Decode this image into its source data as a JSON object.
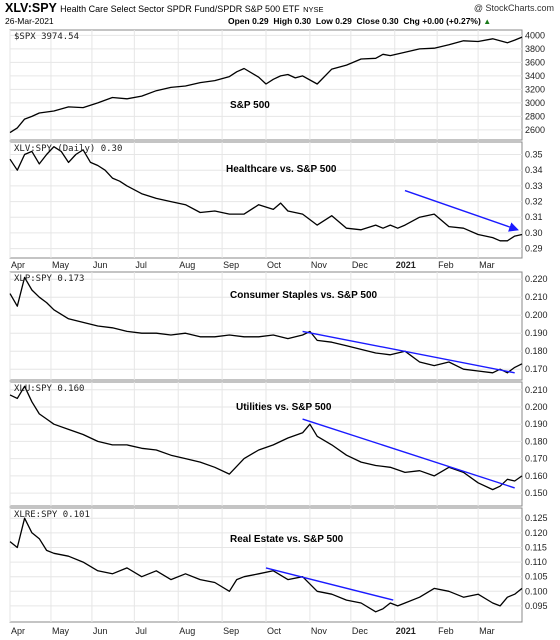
{
  "header": {
    "symbol": "XLV:SPY",
    "description": "Health Care Select Sector SPDR Fund/SPDR S&P 500 ETF",
    "exchange": "NYSE",
    "date": "26-Mar-2021",
    "open": "Open 0.29",
    "high": "High 0.30",
    "low": "Low 0.29",
    "close": "Close 0.30",
    "change": "Chg +0.00 (+0.27%)",
    "change_marker": "▲",
    "credit": "@ StockCharts.com"
  },
  "colors": {
    "price": "#000000",
    "trend": "#1a1aff",
    "grid": "#e6e6e6",
    "axis": "#888888"
  },
  "chart_data": [
    {
      "type": "line",
      "legend": "$SPX 3974.54",
      "annotation": "S&P 500",
      "y_ticks": [
        "2600",
        "2800",
        "3000",
        "3200",
        "3400",
        "3600",
        "3800",
        "4000"
      ],
      "ylim": [
        2450,
        4080
      ],
      "x": [
        0,
        5,
        10,
        15,
        20,
        30,
        40,
        50,
        60,
        70,
        80,
        90,
        100,
        110,
        120,
        130,
        140,
        150,
        155,
        160,
        170,
        175,
        180,
        185,
        190,
        195,
        200,
        210,
        220,
        230,
        240,
        250,
        255,
        260,
        270,
        280,
        290,
        300,
        310,
        320,
        330,
        340,
        345,
        350
      ],
      "values": [
        2560,
        2630,
        2760,
        2800,
        2850,
        2880,
        2940,
        2930,
        3000,
        3080,
        3060,
        3100,
        3180,
        3230,
        3250,
        3300,
        3330,
        3390,
        3460,
        3510,
        3380,
        3280,
        3350,
        3400,
        3420,
        3370,
        3400,
        3280,
        3500,
        3560,
        3650,
        3660,
        3720,
        3700,
        3750,
        3800,
        3810,
        3860,
        3920,
        3910,
        3950,
        3890,
        3930,
        3975
      ],
      "trendline": null
    },
    {
      "type": "line",
      "legend": "XLV:SPY (Daily) 0.30",
      "annotation": "Healthcare vs. S&P 500",
      "y_ticks": [
        "0.29",
        "0.30",
        "0.31",
        "0.32",
        "0.33",
        "0.34",
        "0.35"
      ],
      "ylim": [
        0.284,
        0.358
      ],
      "x": [
        0,
        5,
        10,
        15,
        20,
        25,
        30,
        35,
        40,
        45,
        50,
        55,
        60,
        65,
        70,
        75,
        80,
        90,
        100,
        110,
        120,
        130,
        140,
        150,
        160,
        170,
        180,
        185,
        190,
        200,
        210,
        220,
        230,
        240,
        250,
        255,
        260,
        265,
        270,
        280,
        290,
        300,
        310,
        320,
        330,
        335,
        340,
        345,
        350
      ],
      "values": [
        0.347,
        0.34,
        0.35,
        0.352,
        0.344,
        0.35,
        0.355,
        0.352,
        0.345,
        0.35,
        0.353,
        0.345,
        0.343,
        0.34,
        0.335,
        0.333,
        0.33,
        0.325,
        0.322,
        0.32,
        0.318,
        0.313,
        0.314,
        0.312,
        0.312,
        0.318,
        0.315,
        0.319,
        0.314,
        0.312,
        0.305,
        0.311,
        0.303,
        0.302,
        0.305,
        0.303,
        0.305,
        0.303,
        0.305,
        0.31,
        0.312,
        0.304,
        0.303,
        0.299,
        0.297,
        0.295,
        0.295,
        0.298,
        0.299
      ],
      "trendline": [
        [
          270,
          0.327
        ],
        [
          347,
          0.302
        ]
      ],
      "trend_arrow": true
    },
    {
      "type": "line",
      "legend": "XLP:SPY 0.173",
      "annotation": "Consumer Staples vs. S&P 500",
      "y_ticks": [
        "0.170",
        "0.180",
        "0.190",
        "0.200",
        "0.210",
        "0.220"
      ],
      "ylim": [
        0.164,
        0.224
      ],
      "x": [
        0,
        5,
        10,
        15,
        20,
        25,
        30,
        40,
        50,
        60,
        70,
        80,
        90,
        100,
        110,
        120,
        130,
        140,
        150,
        160,
        170,
        180,
        190,
        200,
        205,
        210,
        220,
        230,
        240,
        250,
        260,
        270,
        280,
        290,
        300,
        310,
        320,
        330,
        335,
        340,
        345,
        350
      ],
      "values": [
        0.212,
        0.205,
        0.221,
        0.214,
        0.21,
        0.207,
        0.203,
        0.198,
        0.196,
        0.194,
        0.193,
        0.191,
        0.19,
        0.19,
        0.189,
        0.19,
        0.188,
        0.188,
        0.189,
        0.188,
        0.188,
        0.189,
        0.187,
        0.189,
        0.191,
        0.186,
        0.185,
        0.183,
        0.181,
        0.179,
        0.178,
        0.18,
        0.174,
        0.172,
        0.174,
        0.17,
        0.169,
        0.168,
        0.17,
        0.168,
        0.171,
        0.173
      ],
      "trendline": [
        [
          200,
          0.191
        ],
        [
          345,
          0.168
        ]
      ],
      "trend_arrow": false
    },
    {
      "type": "line",
      "legend": "XLU:SPY 0.160",
      "annotation": "Utilities vs. S&P 500",
      "y_ticks": [
        "0.150",
        "0.160",
        "0.170",
        "0.180",
        "0.190",
        "0.200",
        "0.210"
      ],
      "ylim": [
        0.1425,
        0.2145
      ],
      "x": [
        0,
        5,
        10,
        15,
        20,
        25,
        30,
        40,
        50,
        60,
        70,
        80,
        90,
        100,
        110,
        120,
        130,
        140,
        150,
        160,
        170,
        180,
        190,
        200,
        205,
        210,
        220,
        230,
        240,
        250,
        260,
        270,
        280,
        290,
        300,
        310,
        320,
        330,
        335,
        340,
        345,
        350
      ],
      "values": [
        0.207,
        0.205,
        0.212,
        0.203,
        0.196,
        0.193,
        0.19,
        0.187,
        0.184,
        0.18,
        0.178,
        0.178,
        0.176,
        0.175,
        0.172,
        0.17,
        0.168,
        0.165,
        0.161,
        0.17,
        0.175,
        0.178,
        0.182,
        0.185,
        0.19,
        0.183,
        0.178,
        0.172,
        0.168,
        0.166,
        0.165,
        0.162,
        0.163,
        0.16,
        0.165,
        0.162,
        0.156,
        0.152,
        0.154,
        0.158,
        0.157,
        0.16
      ],
      "trendline": [
        [
          200,
          0.193
        ],
        [
          345,
          0.153
        ]
      ],
      "trend_arrow": false
    },
    {
      "type": "line",
      "legend": "XLRE:SPY 0.101",
      "annotation": "Real Estate vs. S&P 500",
      "y_ticks": [
        "0.095",
        "0.100",
        "0.105",
        "0.110",
        "0.115",
        "0.120",
        "0.125"
      ],
      "ylim": [
        0.0895,
        0.1285
      ],
      "x": [
        0,
        5,
        10,
        15,
        20,
        25,
        30,
        40,
        50,
        60,
        70,
        80,
        90,
        100,
        110,
        120,
        130,
        140,
        150,
        155,
        160,
        170,
        180,
        190,
        200,
        210,
        220,
        230,
        240,
        250,
        255,
        260,
        265,
        270,
        280,
        290,
        300,
        310,
        320,
        330,
        335,
        340,
        345,
        350
      ],
      "values": [
        0.117,
        0.115,
        0.125,
        0.12,
        0.118,
        0.114,
        0.113,
        0.112,
        0.11,
        0.107,
        0.106,
        0.108,
        0.105,
        0.107,
        0.104,
        0.106,
        0.104,
        0.103,
        0.1,
        0.104,
        0.105,
        0.106,
        0.107,
        0.104,
        0.105,
        0.1,
        0.099,
        0.097,
        0.096,
        0.093,
        0.094,
        0.096,
        0.095,
        0.096,
        0.098,
        0.101,
        0.1,
        0.098,
        0.099,
        0.096,
        0.095,
        0.098,
        0.099,
        0.101
      ],
      "trendline": [
        [
          175,
          0.108
        ],
        [
          262,
          0.097
        ]
      ],
      "trend_arrow": false
    }
  ],
  "x_axis": {
    "range": [
      0,
      350
    ],
    "labels": [
      {
        "label": "Apr",
        "x": 0,
        "bold": false
      },
      {
        "label": "May",
        "x": 28,
        "bold": false
      },
      {
        "label": "Jun",
        "x": 56,
        "bold": false
      },
      {
        "label": "Jul",
        "x": 85,
        "bold": false
      },
      {
        "label": "Aug",
        "x": 115,
        "bold": false
      },
      {
        "label": "Sep",
        "x": 145,
        "bold": false
      },
      {
        "label": "Oct",
        "x": 175,
        "bold": false
      },
      {
        "label": "Nov",
        "x": 205,
        "bold": false
      },
      {
        "label": "Dec",
        "x": 233,
        "bold": false
      },
      {
        "label": "2021",
        "x": 263,
        "bold": true
      },
      {
        "label": "Feb",
        "x": 292,
        "bold": false
      },
      {
        "label": "Mar",
        "x": 320,
        "bold": false
      }
    ]
  }
}
